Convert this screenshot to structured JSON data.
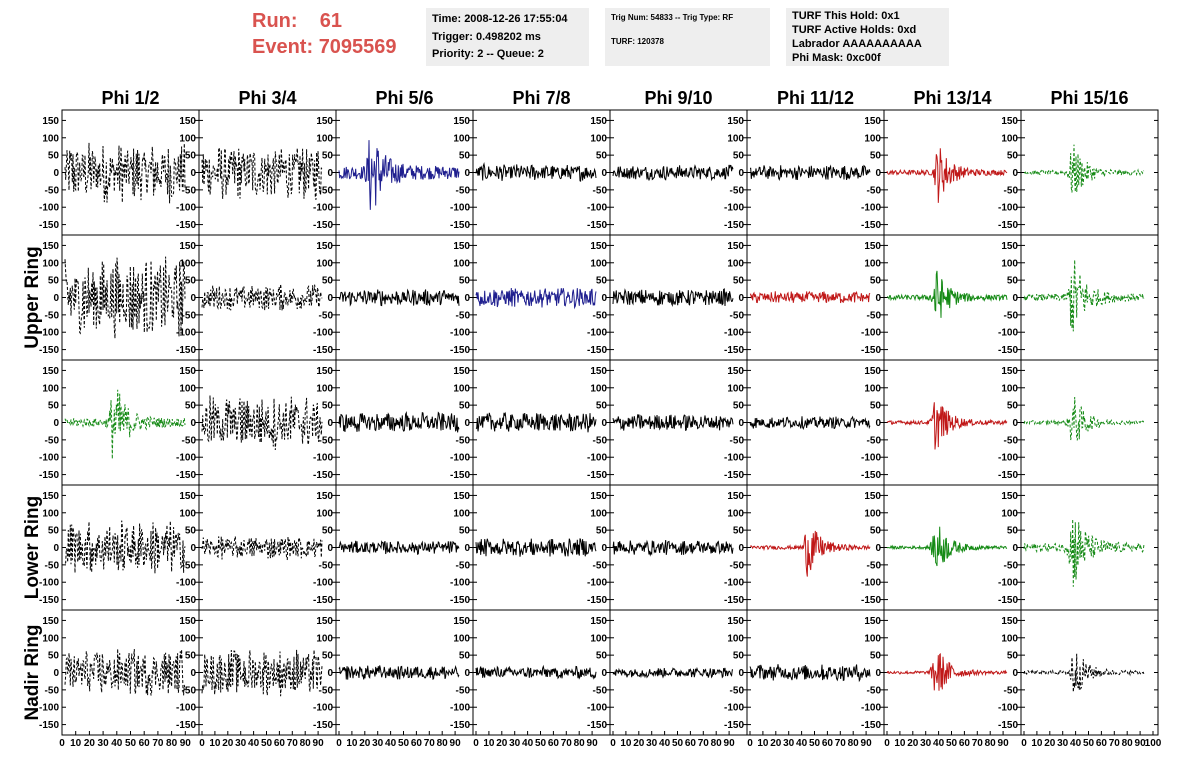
{
  "header": {
    "run_label": "Run:",
    "run_value": "61",
    "event_label": "Event:",
    "event_value": "7095569",
    "info1": [
      "Time: 2008-12-26 17:55:04",
      "Trigger: 0.498202 ms",
      "Priority: 2 -- Queue: 2"
    ],
    "info2": [
      "Trig Num: 54833 -- Trig Type: RF",
      "TURF: 120378"
    ],
    "info3": [
      "TURF This Hold: 0x1",
      "TURF Active Holds: 0xd",
      "Labrador AAAAAAAAAA",
      "Phi Mask: 0xc00f"
    ]
  },
  "chart_data": {
    "type": "line",
    "title": "",
    "columns": [
      "Phi 1/2",
      "Phi 3/4",
      "Phi 5/6",
      "Phi 7/8",
      "Phi 9/10",
      "Phi 11/12",
      "Phi 13/14",
      "Phi 15/16"
    ],
    "row_labels": [
      "Upper Ring",
      "Lower Ring",
      "Nadir Ring"
    ],
    "xlim": [
      0,
      100
    ],
    "ylim": [
      -180,
      180
    ],
    "x_ticks": [
      0,
      10,
      20,
      30,
      40,
      50,
      60,
      70,
      80,
      90,
      100
    ],
    "y_ticks": [
      -150,
      -100,
      -50,
      0,
      50,
      100,
      150
    ],
    "colors": {
      "black": "#000000",
      "blue": "#1f1f8f",
      "red": "#c01818",
      "green": "#158a15"
    },
    "panels": [
      [
        {
          "color": "black",
          "dashed": true,
          "amplitude": 90,
          "pulse": null
        },
        {
          "color": "black",
          "dashed": true,
          "amplitude": 85,
          "pulse": null
        },
        {
          "color": "blue",
          "dashed": false,
          "amplitude": 55,
          "pulse": 25
        },
        {
          "color": "black",
          "dashed": false,
          "amplitude": 25,
          "pulse": null
        },
        {
          "color": "black",
          "dashed": false,
          "amplitude": 22,
          "pulse": null
        },
        {
          "color": "black",
          "dashed": false,
          "amplitude": 22,
          "pulse": null
        },
        {
          "color": "red",
          "dashed": false,
          "amplitude": 20,
          "pulse": 40
        },
        {
          "color": "green",
          "dashed": true,
          "amplitude": 18,
          "pulse": 38
        }
      ],
      [
        {
          "color": "black",
          "dashed": true,
          "amplitude": 120,
          "pulse": null
        },
        {
          "color": "black",
          "dashed": true,
          "amplitude": 40,
          "pulse": null
        },
        {
          "color": "black",
          "dashed": false,
          "amplitude": 25,
          "pulse": null
        },
        {
          "color": "blue",
          "dashed": false,
          "amplitude": 30,
          "pulse": null
        },
        {
          "color": "black",
          "dashed": false,
          "amplitude": 25,
          "pulse": null
        },
        {
          "color": "red",
          "dashed": false,
          "amplitude": 18,
          "pulse": null
        },
        {
          "color": "green",
          "dashed": false,
          "amplitude": 20,
          "pulse": 38
        },
        {
          "color": "green",
          "dashed": true,
          "amplitude": 30,
          "pulse": 38
        }
      ],
      [
        {
          "color": "green",
          "dashed": true,
          "amplitude": 35,
          "pulse": 38
        },
        {
          "color": "black",
          "dashed": true,
          "amplitude": 80,
          "pulse": null
        },
        {
          "color": "black",
          "dashed": false,
          "amplitude": 30,
          "pulse": null
        },
        {
          "color": "black",
          "dashed": false,
          "amplitude": 30,
          "pulse": null
        },
        {
          "color": "black",
          "dashed": false,
          "amplitude": 25,
          "pulse": null
        },
        {
          "color": "black",
          "dashed": false,
          "amplitude": 18,
          "pulse": null
        },
        {
          "color": "red",
          "dashed": false,
          "amplitude": 15,
          "pulse": 38
        },
        {
          "color": "green",
          "dashed": true,
          "amplitude": 15,
          "pulse": 38
        }
      ],
      [
        {
          "color": "black",
          "dashed": true,
          "amplitude": 80,
          "pulse": null
        },
        {
          "color": "black",
          "dashed": true,
          "amplitude": 35,
          "pulse": null
        },
        {
          "color": "black",
          "dashed": false,
          "amplitude": 20,
          "pulse": null
        },
        {
          "color": "black",
          "dashed": false,
          "amplitude": 28,
          "pulse": null
        },
        {
          "color": "black",
          "dashed": false,
          "amplitude": 22,
          "pulse": null
        },
        {
          "color": "red",
          "dashed": false,
          "amplitude": 15,
          "pulse": 45
        },
        {
          "color": "green",
          "dashed": false,
          "amplitude": 12,
          "pulse": 38
        },
        {
          "color": "green",
          "dashed": true,
          "amplitude": 35,
          "pulse": 38
        }
      ],
      [
        {
          "color": "black",
          "dashed": true,
          "amplitude": 70,
          "pulse": null
        },
        {
          "color": "black",
          "dashed": true,
          "amplitude": 70,
          "pulse": null
        },
        {
          "color": "black",
          "dashed": false,
          "amplitude": 22,
          "pulse": null
        },
        {
          "color": "black",
          "dashed": false,
          "amplitude": 18,
          "pulse": null
        },
        {
          "color": "black",
          "dashed": false,
          "amplitude": 15,
          "pulse": null
        },
        {
          "color": "black",
          "dashed": false,
          "amplitude": 25,
          "pulse": null
        },
        {
          "color": "red",
          "dashed": false,
          "amplitude": 12,
          "pulse": 38
        },
        {
          "color": "black",
          "dashed": true,
          "amplitude": 15,
          "pulse": 38
        }
      ]
    ]
  }
}
